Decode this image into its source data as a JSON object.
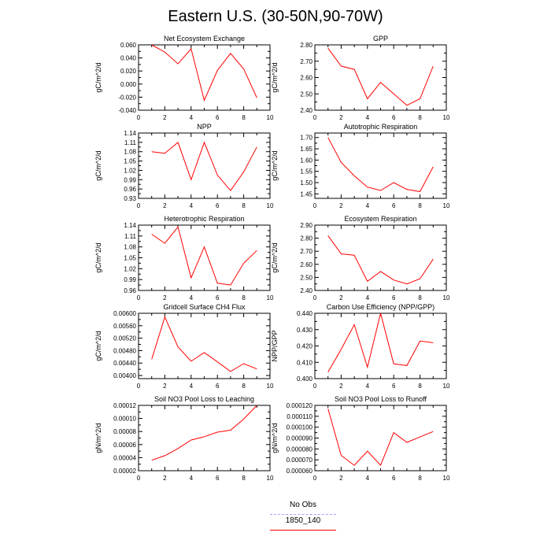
{
  "title": "Eastern U.S. (30-50N,90-70W)",
  "chart_data": [
    {
      "type": "line",
      "title": "Net Ecosystem Exchange",
      "ylabel": "gC/m^2/d",
      "x": [
        1,
        2,
        3,
        4,
        5,
        6,
        7,
        8,
        9
      ],
      "series": [
        {
          "name": "1850_140",
          "color": "#ff0000",
          "values": [
            0.06,
            0.049,
            0.031,
            0.054,
            -0.025,
            0.021,
            0.047,
            0.023,
            -0.021
          ]
        }
      ],
      "xlim": [
        0,
        10
      ],
      "ylim": [
        -0.04,
        0.06
      ],
      "xticks": [
        "0",
        "2",
        "4",
        "6",
        "8",
        "10"
      ],
      "yticks": [
        -0.04,
        -0.02,
        0.0,
        0.02,
        0.04,
        0.06
      ],
      "ytick_labels": [
        "-0.040",
        "-0.020",
        "0.000",
        "0.020",
        "0.040",
        "0.060"
      ]
    },
    {
      "type": "line",
      "title": "GPP",
      "ylabel": "gC/m^2/d",
      "x": [
        1,
        2,
        3,
        4,
        5,
        6,
        7,
        8,
        9
      ],
      "series": [
        {
          "name": "1850_140",
          "color": "#ff0000",
          "values": [
            2.78,
            2.67,
            2.65,
            2.47,
            2.57,
            2.5,
            2.43,
            2.47,
            2.67
          ]
        }
      ],
      "xlim": [
        0,
        10
      ],
      "ylim": [
        2.4,
        2.8
      ],
      "xticks": [
        "0",
        "2",
        "4",
        "6",
        "8",
        "10"
      ],
      "yticks": [
        2.4,
        2.5,
        2.6,
        2.7,
        2.8
      ],
      "ytick_labels": [
        "2.40",
        "2.50",
        "2.60",
        "2.70",
        "2.80"
      ]
    },
    {
      "type": "line",
      "title": "NPP",
      "ylabel": "gC/m^2/d",
      "x": [
        1,
        2,
        3,
        4,
        5,
        6,
        7,
        8,
        9
      ],
      "series": [
        {
          "name": "1850_140",
          "color": "#ff0000",
          "values": [
            1.08,
            1.075,
            1.11,
            0.99,
            1.11,
            1.005,
            0.955,
            1.015,
            1.095
          ]
        }
      ],
      "xlim": [
        0,
        10
      ],
      "ylim": [
        0.93,
        1.14
      ],
      "xticks": [
        "0",
        "2",
        "4",
        "6",
        "8",
        "10"
      ],
      "yticks": [
        0.93,
        0.96,
        0.99,
        1.02,
        1.05,
        1.08,
        1.11,
        1.14
      ],
      "ytick_labels": [
        "0.93",
        "0.96",
        "0.99",
        "1.02",
        "1.05",
        "1.08",
        "1.11",
        "1.14"
      ]
    },
    {
      "type": "line",
      "title": "Autotrophic Respiration",
      "ylabel": "gC/m^2/d",
      "x": [
        1,
        2,
        3,
        4,
        5,
        6,
        7,
        8,
        9
      ],
      "series": [
        {
          "name": "1850_140",
          "color": "#ff0000",
          "values": [
            1.7,
            1.59,
            1.53,
            1.48,
            1.465,
            1.5,
            1.47,
            1.46,
            1.57
          ]
        }
      ],
      "xlim": [
        0,
        10
      ],
      "ylim": [
        1.43,
        1.72
      ],
      "xticks": [
        "0",
        "2",
        "4",
        "6",
        "8",
        "10"
      ],
      "yticks": [
        1.45,
        1.5,
        1.55,
        1.6,
        1.65,
        1.7
      ],
      "ytick_labels": [
        "1.45",
        "1.50",
        "1.55",
        "1.60",
        "1.65",
        "1.70"
      ]
    },
    {
      "type": "line",
      "title": "Heterotrophic Respiration",
      "ylabel": "gC/m^2/d",
      "x": [
        1,
        2,
        3,
        4,
        5,
        6,
        7,
        8,
        9
      ],
      "series": [
        {
          "name": "1850_140",
          "color": "#ff0000",
          "values": [
            1.115,
            1.09,
            1.135,
            0.995,
            1.08,
            0.98,
            0.975,
            1.035,
            1.07
          ]
        }
      ],
      "xlim": [
        0,
        10
      ],
      "ylim": [
        0.96,
        1.14
      ],
      "xticks": [
        "0",
        "2",
        "4",
        "6",
        "8",
        "10"
      ],
      "yticks": [
        0.96,
        0.99,
        1.02,
        1.05,
        1.08,
        1.11,
        1.14
      ],
      "ytick_labels": [
        "0.96",
        "0.99",
        "1.02",
        "1.05",
        "1.08",
        "1.11",
        "1.14"
      ]
    },
    {
      "type": "line",
      "title": "Ecosystem Respiration",
      "ylabel": "gC/m^2/d",
      "x": [
        1,
        2,
        3,
        4,
        5,
        6,
        7,
        8,
        9
      ],
      "series": [
        {
          "name": "1850_140",
          "color": "#ff0000",
          "values": [
            2.82,
            2.68,
            2.67,
            2.47,
            2.545,
            2.48,
            2.45,
            2.49,
            2.64
          ]
        }
      ],
      "xlim": [
        0,
        10
      ],
      "ylim": [
        2.4,
        2.9
      ],
      "xticks": [
        "0",
        "2",
        "4",
        "6",
        "8",
        "10"
      ],
      "yticks": [
        2.4,
        2.5,
        2.6,
        2.7,
        2.8,
        2.9
      ],
      "ytick_labels": [
        "2.40",
        "2.50",
        "2.60",
        "2.70",
        "2.80",
        "2.90"
      ]
    },
    {
      "type": "line",
      "title": "Gridcell Surface CH4 Flux",
      "ylabel": "gC/m^2/d",
      "x": [
        1,
        2,
        3,
        4,
        5,
        6,
        7,
        8,
        9
      ],
      "series": [
        {
          "name": "1850_140",
          "color": "#ff0000",
          "values": [
            0.00452,
            0.00588,
            0.00492,
            0.00446,
            0.00474,
            0.00444,
            0.00413,
            0.00438,
            0.00421
          ]
        }
      ],
      "xlim": [
        0,
        10
      ],
      "ylim": [
        0.0039,
        0.006
      ],
      "xticks": [
        "0",
        "2",
        "4",
        "6",
        "8",
        "10"
      ],
      "yticks": [
        0.004,
        0.0044,
        0.0048,
        0.0052,
        0.0056,
        0.006
      ],
      "ytick_labels": [
        "0.00400",
        "0.00440",
        "0.00480",
        "0.00520",
        "0.00560",
        "0.00600"
      ]
    },
    {
      "type": "line",
      "title": "Carbon Use Efficiency (NPP/GPP)",
      "ylabel": "NPP/GPP",
      "x": [
        1,
        2,
        3,
        4,
        5,
        6,
        7,
        8,
        9
      ],
      "series": [
        {
          "name": "1850_140",
          "color": "#ff0000",
          "values": [
            0.404,
            0.418,
            0.433,
            0.407,
            0.44,
            0.409,
            0.408,
            0.423,
            0.422
          ]
        }
      ],
      "xlim": [
        0,
        10
      ],
      "ylim": [
        0.4,
        0.44
      ],
      "xticks": [
        "0",
        "2",
        "4",
        "6",
        "8",
        "10"
      ],
      "yticks": [
        0.4,
        0.41,
        0.42,
        0.43,
        0.44
      ],
      "ytick_labels": [
        "0.400",
        "0.410",
        "0.420",
        "0.430",
        "0.440"
      ]
    },
    {
      "type": "line",
      "title": "Soil NO3 Pool Loss to Leaching",
      "ylabel": "gN/m^2/d",
      "x": [
        1,
        2,
        3,
        4,
        5,
        6,
        7,
        8,
        9
      ],
      "series": [
        {
          "name": "1850_140",
          "color": "#ff0000",
          "values": [
            3.6e-05,
            4.3e-05,
            5.4e-05,
            6.7e-05,
            7.2e-05,
            7.9e-05,
            8.2e-05,
            9.9e-05,
            0.00012
          ]
        }
      ],
      "xlim": [
        0,
        10
      ],
      "ylim": [
        2e-05,
        0.00012
      ],
      "xticks": [
        "0",
        "2",
        "4",
        "6",
        "8",
        "10"
      ],
      "yticks": [
        2e-05,
        4e-05,
        6e-05,
        8e-05,
        0.0001,
        0.00012
      ],
      "ytick_labels": [
        "0.00002",
        "0.00004",
        "0.00006",
        "0.00008",
        "0.00010",
        "0.00012"
      ]
    },
    {
      "type": "line",
      "title": "Soil NO3 Pool Loss to Runoff",
      "ylabel": "gN/m^2/d",
      "x": [
        1,
        2,
        3,
        4,
        5,
        6,
        7,
        8,
        9
      ],
      "series": [
        {
          "name": "1850_140",
          "color": "#ff0000",
          "values": [
            0.000117,
            7.4e-05,
            6.5e-05,
            7.8e-05,
            6.5e-05,
            9.5e-05,
            8.6e-05,
            9.1e-05,
            9.6e-05
          ]
        }
      ],
      "xlim": [
        0,
        10
      ],
      "ylim": [
        6e-05,
        0.00012
      ],
      "xticks": [
        "0",
        "2",
        "4",
        "6",
        "8",
        "10"
      ],
      "yticks": [
        6e-05,
        7e-05,
        8e-05,
        9e-05,
        0.0001,
        0.00011,
        0.00012
      ],
      "ytick_labels": [
        "0.000060",
        "0.000070",
        "0.000080",
        "0.000090",
        "0.000100",
        "0.000110",
        "0.000120"
      ]
    }
  ],
  "legend": {
    "entries": [
      {
        "label": "No Obs",
        "color": "#a0a0ff",
        "style": "dashed"
      },
      {
        "label": "1850_140",
        "color": "#ff0000",
        "style": "solid"
      }
    ]
  }
}
